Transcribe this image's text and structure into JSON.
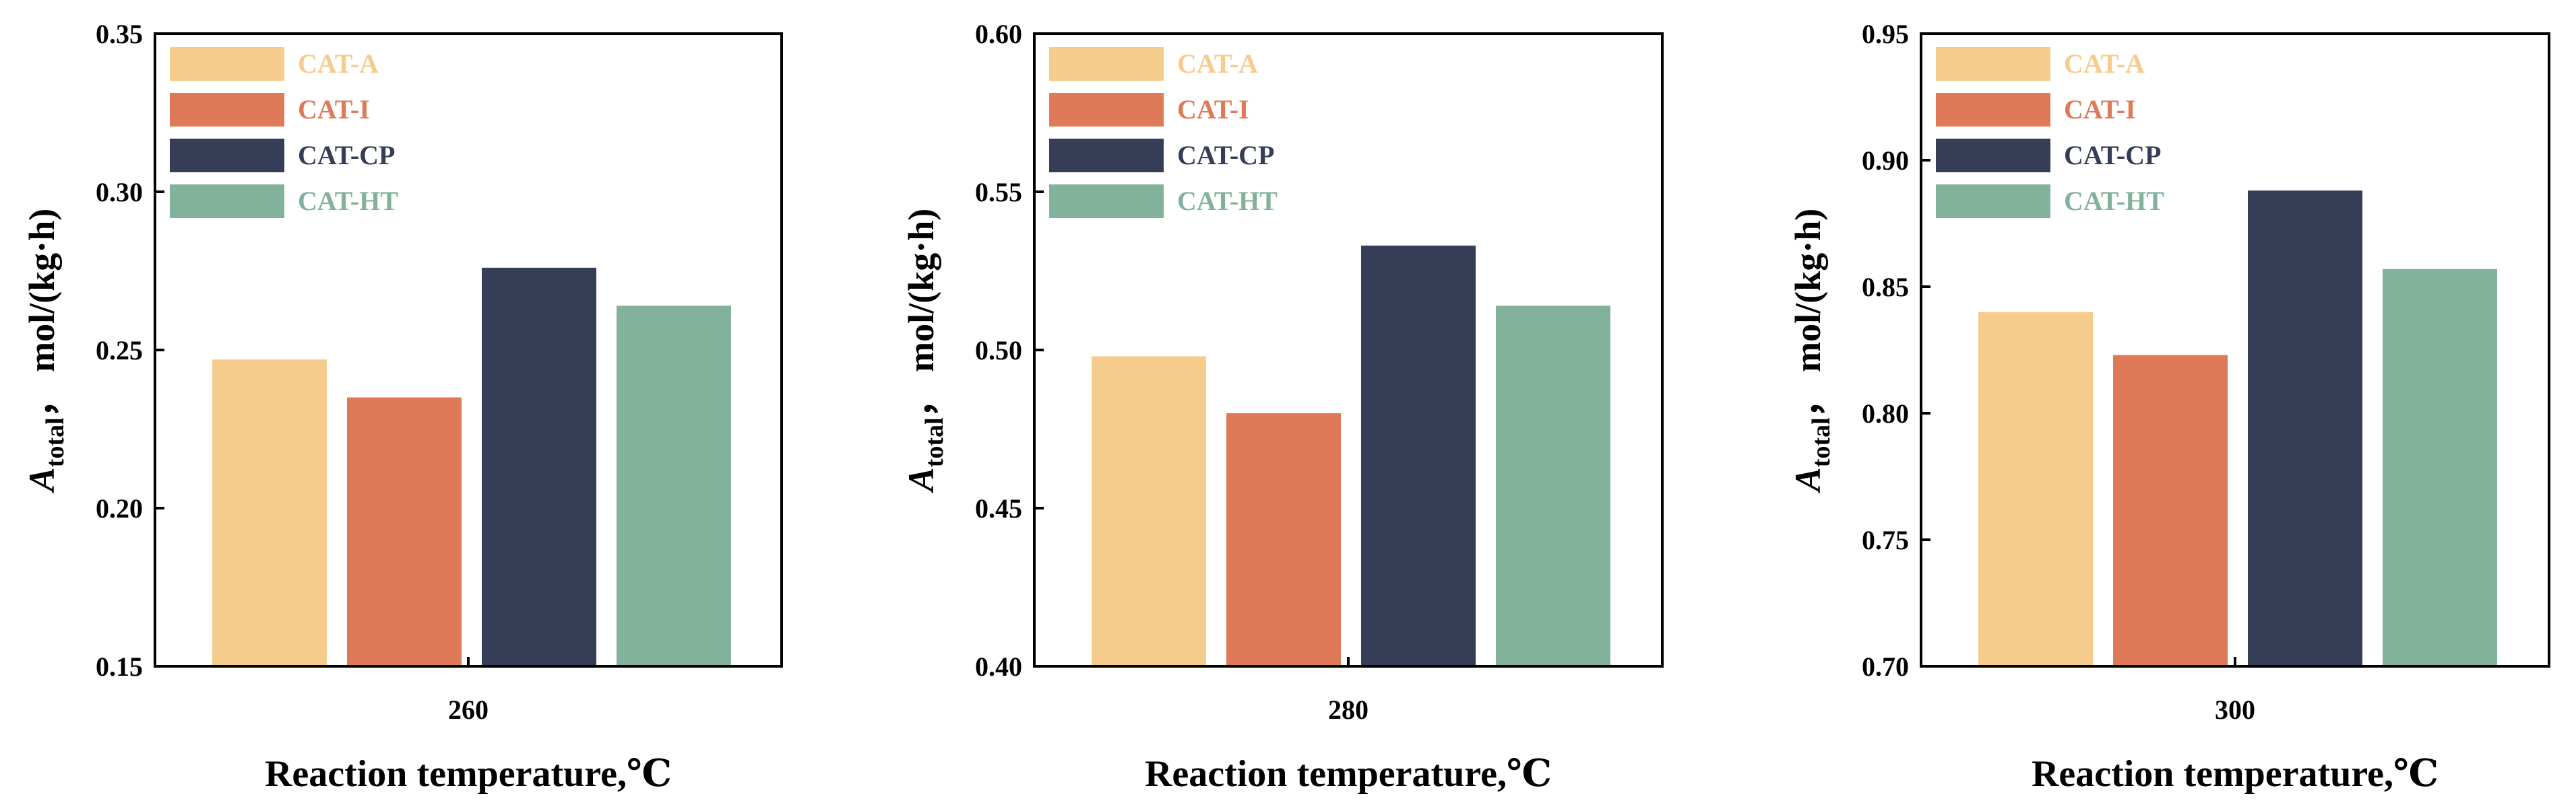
{
  "colors": {
    "CAT-A": "#f6cc8c",
    "CAT-I": "#df7a58",
    "CAT-CP": "#363d56",
    "CAT-HT": "#83b29c"
  },
  "chart_data": [
    {
      "type": "bar",
      "categories": [
        "260"
      ],
      "series": [
        {
          "name": "CAT-A",
          "values": [
            0.247
          ]
        },
        {
          "name": "CAT-I",
          "values": [
            0.235
          ]
        },
        {
          "name": "CAT-CP",
          "values": [
            0.276
          ]
        },
        {
          "name": "CAT-HT",
          "values": [
            0.264
          ]
        }
      ],
      "ylim": [
        0.15,
        0.35
      ],
      "yticks": [
        "0.15",
        "0.20",
        "0.25",
        "0.30",
        "0.35"
      ],
      "xlabel": "Reaction temperature,℃",
      "ylabel": {
        "symbol": "A",
        "subscript": "total",
        "unit": "，  mol/(kg·h)"
      },
      "legend": "top-left"
    },
    {
      "type": "bar",
      "categories": [
        "280"
      ],
      "series": [
        {
          "name": "CAT-A",
          "values": [
            0.498
          ]
        },
        {
          "name": "CAT-I",
          "values": [
            0.48
          ]
        },
        {
          "name": "CAT-CP",
          "values": [
            0.533
          ]
        },
        {
          "name": "CAT-HT",
          "values": [
            0.514
          ]
        }
      ],
      "ylim": [
        0.4,
        0.6
      ],
      "yticks": [
        "0.40",
        "0.45",
        "0.50",
        "0.55",
        "0.60"
      ],
      "xlabel": "Reaction temperature,℃",
      "ylabel": {
        "symbol": "A",
        "subscript": "total",
        "unit": "，  mol/(kg·h)"
      },
      "legend": "top-left"
    },
    {
      "type": "bar",
      "categories": [
        "300"
      ],
      "series": [
        {
          "name": "CAT-A",
          "values": [
            0.84
          ]
        },
        {
          "name": "CAT-I",
          "values": [
            0.823
          ]
        },
        {
          "name": "CAT-CP",
          "values": [
            0.888
          ]
        },
        {
          "name": "CAT-HT",
          "values": [
            0.857
          ]
        }
      ],
      "ylim": [
        0.7,
        0.95
      ],
      "yticks": [
        "0.70",
        "0.75",
        "0.80",
        "0.85",
        "0.90",
        "0.95"
      ],
      "xlabel": "Reaction temperature,℃",
      "ylabel": {
        "symbol": "A",
        "subscript": "total",
        "unit": "，  mol/(kg·h)"
      },
      "legend": "top-left"
    }
  ]
}
